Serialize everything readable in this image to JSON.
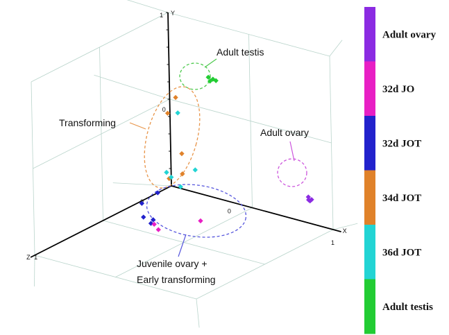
{
  "chart_data": {
    "type": "scatter",
    "projection": "3d",
    "axes": {
      "x": {
        "label": "X",
        "ticks": [
          "0",
          "1"
        ]
      },
      "y": {
        "label": "Y",
        "ticks": [
          "0",
          "1"
        ]
      },
      "z": {
        "label": "Z",
        "ticks": [
          "1"
        ]
      }
    },
    "grid": true,
    "legend": {
      "placement": "right",
      "style": "color-bar",
      "entries": [
        {
          "label": "Adult ovary",
          "color": "#8b2be2"
        },
        {
          "label": "32d JO",
          "color": "#e81fc4"
        },
        {
          "label": "32d JOT",
          "color": "#2222cc"
        },
        {
          "label": "34d JOT",
          "color": "#e0822a"
        },
        {
          "label": "36d JOT",
          "color": "#22d4d4"
        },
        {
          "label": "Adult testis",
          "color": "#22cc33"
        }
      ]
    },
    "annotations": [
      {
        "id": "testis",
        "text": "Adult testis",
        "color": "#4cc94c"
      },
      {
        "id": "transforming",
        "text": "Transforming",
        "color": "#e8954a"
      },
      {
        "id": "ovary",
        "text": "Adult ovary",
        "color": "#cc55dd"
      },
      {
        "id": "juvenile",
        "text": "Juvenile ovary +",
        "text2": "Early transforming",
        "color": "#5555dd"
      }
    ],
    "series": [
      {
        "name": "Adult testis",
        "color": "#22cc33",
        "points": [
          [
            0.26,
            0.7,
            0.02
          ],
          [
            0.28,
            0.69,
            0.01
          ],
          [
            0.27,
            0.68,
            0.02
          ],
          [
            0.29,
            0.68,
            0.0
          ]
        ]
      },
      {
        "name": "34d JOT",
        "color": "#e0822a",
        "points": [
          [
            0.08,
            0.55,
            0.05
          ],
          [
            0.02,
            0.44,
            0.04
          ],
          [
            0.12,
            0.24,
            0.06
          ],
          [
            0.13,
            0.13,
            0.07
          ],
          [
            0.03,
            0.07,
            0.05
          ]
        ]
      },
      {
        "name": "36d JOT",
        "color": "#22d4d4",
        "points": [
          [
            0.1,
            0.47,
            0.06
          ],
          [
            0.04,
            0.12,
            0.08
          ],
          [
            0.1,
            0.04,
            0.05
          ],
          [
            0.15,
            0.13,
            0.0
          ],
          [
            0.0,
            0.05,
            0.0
          ]
        ]
      },
      {
        "name": "Adult ovary",
        "color": "#8b2be2",
        "points": [
          [
            0.85,
            0.15,
            0.0
          ],
          [
            0.86,
            0.14,
            0.01
          ],
          [
            0.86,
            0.13,
            0.0
          ],
          [
            0.87,
            0.14,
            0.0
          ]
        ]
      },
      {
        "name": "32d JOT",
        "color": "#2222cc",
        "points": [
          [
            0.0,
            0.0,
            0.1
          ],
          [
            0.02,
            0.0,
            0.24
          ],
          [
            0.08,
            -0.04,
            0.3
          ],
          [
            0.14,
            -0.04,
            0.3
          ],
          [
            0.16,
            -0.04,
            0.34
          ]
        ]
      },
      {
        "name": "32d JO",
        "color": "#e81fc4",
        "points": [
          [
            0.34,
            -0.04,
            0.19
          ],
          [
            0.24,
            -0.04,
            0.38
          ],
          [
            0.18,
            -0.04,
            0.34
          ]
        ]
      }
    ]
  }
}
